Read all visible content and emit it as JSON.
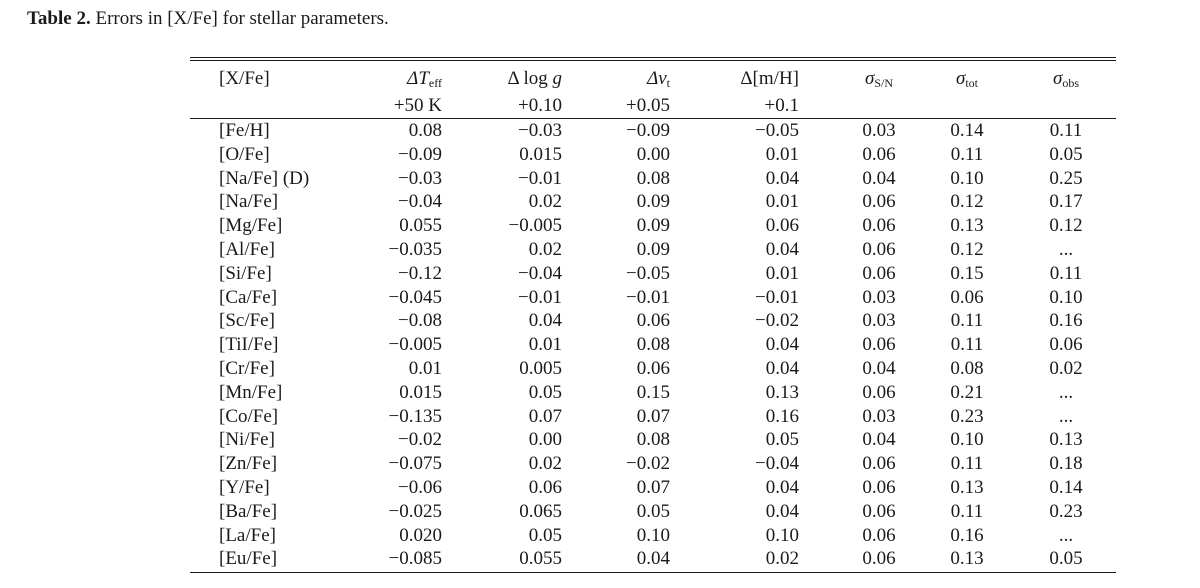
{
  "caption": {
    "label": "Table 2.",
    "text": " Errors in [X/Fe] for stellar parameters."
  },
  "table": {
    "headers": {
      "col0": "[X/Fe]",
      "col1_sym": "ΔT",
      "col1_sub": "eff",
      "col1_delta": "+50 K",
      "col2_sym": "Δ log ",
      "col2_var": "g",
      "col2_delta": "+0.10",
      "col3_sym": "Δv",
      "col3_sub": "t",
      "col3_delta": "+0.05",
      "col4_sym": "Δ[m/H]",
      "col4_delta": "+0.1",
      "col5_sym": "σ",
      "col5_sub": "S/N",
      "col6_sym": "σ",
      "col6_sub": "tot",
      "col7_sym": "σ",
      "col7_sub": "obs"
    },
    "rows": [
      [
        "[Fe/H]",
        "0.08",
        "−0.03",
        "−0.09",
        "−0.05",
        "0.03",
        "0.14",
        "0.11"
      ],
      [
        "[O/Fe]",
        "−0.09",
        "0.015",
        "0.00",
        "0.01",
        "0.06",
        "0.11",
        "0.05"
      ],
      [
        "[Na/Fe] (D)",
        "−0.03",
        "−0.01",
        "0.08",
        "0.04",
        "0.04",
        "0.10",
        "0.25"
      ],
      [
        "[Na/Fe]",
        "−0.04",
        "0.02",
        "0.09",
        "0.01",
        "0.06",
        "0.12",
        "0.17"
      ],
      [
        "[Mg/Fe]",
        "0.055",
        "−0.005",
        "0.09",
        "0.06",
        "0.06",
        "0.13",
        "0.12"
      ],
      [
        "[Al/Fe]",
        "−0.035",
        "0.02",
        "0.09",
        "0.04",
        "0.06",
        "0.12",
        "..."
      ],
      [
        "[Si/Fe]",
        "−0.12",
        "−0.04",
        "−0.05",
        "0.01",
        "0.06",
        "0.15",
        "0.11"
      ],
      [
        "[Ca/Fe]",
        "−0.045",
        "−0.01",
        "−0.01",
        "−0.01",
        "0.03",
        "0.06",
        "0.10"
      ],
      [
        "[Sc/Fe]",
        "−0.08",
        "0.04",
        "0.06",
        "−0.02",
        "0.03",
        "0.11",
        "0.16"
      ],
      [
        "[TiI/Fe]",
        "−0.005",
        "0.01",
        "0.08",
        "0.04",
        "0.06",
        "0.11",
        "0.06"
      ],
      [
        "[Cr/Fe]",
        "0.01",
        "0.005",
        "0.06",
        "0.04",
        "0.04",
        "0.08",
        "0.02"
      ],
      [
        "[Mn/Fe]",
        "0.015",
        "0.05",
        "0.15",
        "0.13",
        "0.06",
        "0.21",
        "..."
      ],
      [
        "[Co/Fe]",
        "−0.135",
        "0.07",
        "0.07",
        "0.16",
        "0.03",
        "0.23",
        "..."
      ],
      [
        "[Ni/Fe]",
        "−0.02",
        "0.00",
        "0.08",
        "0.05",
        "0.04",
        "0.10",
        "0.13"
      ],
      [
        "[Zn/Fe]",
        "−0.075",
        "0.02",
        "−0.02",
        "−0.04",
        "0.06",
        "0.11",
        "0.18"
      ],
      [
        "[Y/Fe]",
        "−0.06",
        "0.06",
        "0.07",
        "0.04",
        "0.06",
        "0.13",
        "0.14"
      ],
      [
        "[Ba/Fe]",
        "−0.025",
        "0.065",
        "0.05",
        "0.04",
        "0.06",
        "0.11",
        "0.23"
      ],
      [
        "[La/Fe]",
        "0.020",
        "0.05",
        "0.10",
        "0.10",
        "0.06",
        "0.16",
        "..."
      ],
      [
        "[Eu/Fe]",
        "−0.085",
        "0.055",
        "0.04",
        "0.02",
        "0.06",
        "0.13",
        "0.05"
      ]
    ]
  }
}
